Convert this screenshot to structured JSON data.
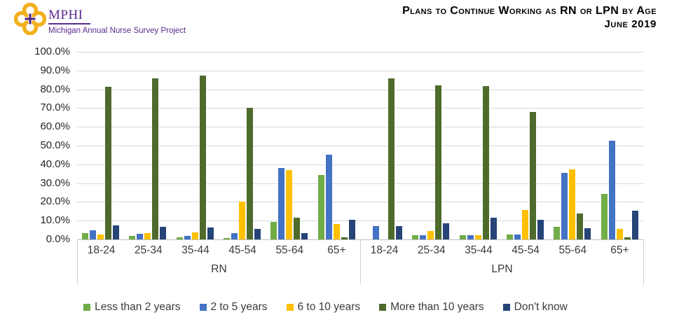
{
  "header": {
    "logo": {
      "acronym": "MPHI",
      "tagline": "Michigan Annual Nurse Survey Project",
      "mark_gold": "#F2B01E",
      "mark_purple": "#4B2683"
    },
    "title_line1": "Plans to Continue Working as RN or LPN  by Age",
    "title_line2": "June 2019"
  },
  "y_axis": {
    "tick_labels": [
      "100.0%",
      "90.0%",
      "80.0%",
      "70.0%",
      "60.0%",
      "50.0%",
      "40.0%",
      "30.0%",
      "20.0%",
      "10.0%",
      "0.0%"
    ]
  },
  "chart_data": {
    "type": "bar",
    "title": "Plans to Continue Working as RN or LPN by Age",
    "subtitle": "June 2019",
    "ylabel": "",
    "ylim": [
      0,
      100
    ],
    "ytick_step": 10,
    "grid": "horizontal",
    "legend_position": "bottom",
    "group_labels": [
      "RN",
      "LPN"
    ],
    "categories": [
      "18-24",
      "25-34",
      "35-44",
      "45-54",
      "55-64",
      "65+"
    ],
    "series": [
      {
        "name": "Less than 2 years",
        "color": "#70AD47",
        "RN": [
          3.4,
          2.0,
          1.0,
          0.9,
          9.5,
          34.5
        ],
        "LPN": [
          0.0,
          2.2,
          2.3,
          2.7,
          6.6,
          24.4
        ]
      },
      {
        "name": "2 to 5 years",
        "color": "#4472C4",
        "RN": [
          4.9,
          2.9,
          2.0,
          3.4,
          38.2,
          45.3
        ],
        "LPN": [
          7.2,
          2.1,
          2.1,
          2.6,
          35.4,
          52.7
        ]
      },
      {
        "name": "6 to 10 years",
        "color": "#FFC000",
        "RN": [
          2.8,
          3.5,
          3.9,
          20.0,
          37.0,
          8.4
        ],
        "LPN": [
          0.0,
          4.4,
          2.1,
          15.6,
          37.2,
          5.5
        ]
      },
      {
        "name": "More than 10 years",
        "color": "#4E6B2C",
        "RN": [
          81.3,
          85.9,
          87.5,
          70.1,
          11.5,
          1.0
        ],
        "LPN": [
          85.7,
          82.1,
          81.8,
          68.1,
          13.9,
          1.3
        ]
      },
      {
        "name": "Don't know",
        "color": "#264478",
        "RN": [
          7.4,
          6.6,
          6.2,
          5.6,
          3.4,
          10.5
        ],
        "LPN": [
          7.1,
          8.7,
          11.6,
          10.4,
          6.1,
          15.4
        ]
      }
    ]
  }
}
